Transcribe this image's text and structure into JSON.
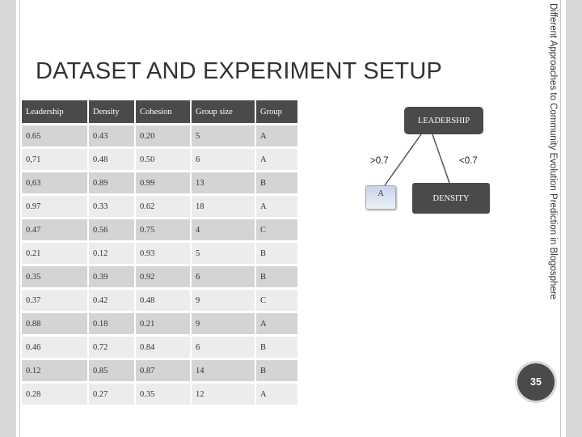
{
  "slide": {
    "title": "DATASET AND EXPERIMENT SETUP",
    "side_text": "Different Approaches to Community Evolution Prediction in Blogosphere",
    "page_number": "35"
  },
  "table": {
    "headers": [
      "Leadership",
      "Density",
      "Cohesion",
      "Group size",
      "Group"
    ],
    "rows": [
      [
        "0.65",
        "0.43",
        "0.20",
        "5",
        "A"
      ],
      [
        "0,71",
        "0.48",
        "0.50",
        "6",
        "A"
      ],
      [
        "0,63",
        "0.89",
        "0.99",
        "13",
        "B"
      ],
      [
        "0.97",
        "0.33",
        "0.62",
        "18",
        "A"
      ],
      [
        "0.47",
        "0.56",
        "0.75",
        "4",
        "C"
      ],
      [
        "0.21",
        "0.12",
        "0.93",
        "5",
        "B"
      ],
      [
        "0.35",
        "0.39",
        "0.92",
        "6",
        "B"
      ],
      [
        "0.37",
        "0.42",
        "0.48",
        "9",
        "C"
      ],
      [
        "0.88",
        "0.18",
        "0.21",
        "9",
        "A"
      ],
      [
        "0.46",
        "0.72",
        "0.84",
        "6",
        "B"
      ],
      [
        "0.12",
        "0.85",
        "0.87",
        "14",
        "B"
      ],
      [
        "0.28",
        "0.27",
        "0.35",
        "12",
        "A"
      ]
    ]
  },
  "tree": {
    "root": "LEADERSHIP",
    "edge_left": ">0.7",
    "edge_right": "<0.7",
    "leaf_left": "A",
    "leaf_right": "DENSITY",
    "colors": {
      "node_dark": "#4a4a4a",
      "leaf_light": "#c6d3e8"
    }
  }
}
